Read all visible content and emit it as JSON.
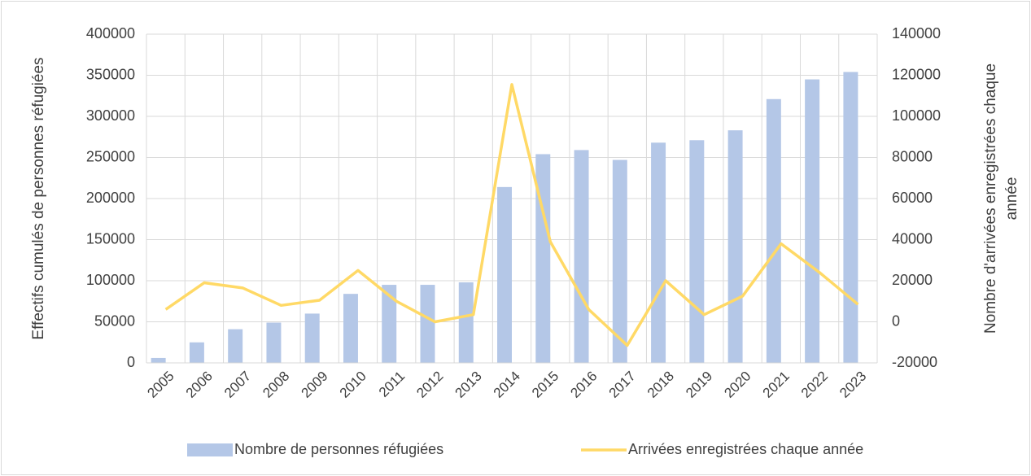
{
  "chart_data": {
    "type": "bar_line",
    "categories": [
      "2005",
      "2006",
      "2007",
      "2008",
      "2009",
      "2010",
      "2011",
      "2012",
      "2013",
      "2014",
      "2015",
      "2016",
      "2017",
      "2018",
      "2019",
      "2020",
      "2021",
      "2022",
      "2023"
    ],
    "series": [
      {
        "name": "Nombre de personnes réfugiées",
        "color": "#b4c7e7",
        "type": "bar",
        "axis": "y",
        "values": [
          6000,
          25000,
          41000,
          49000,
          60000,
          84000,
          95000,
          95000,
          98000,
          214000,
          254000,
          259000,
          247000,
          268000,
          271000,
          283000,
          321000,
          345000,
          354000
        ]
      },
      {
        "name": "Arrivées enregistrées chaque année",
        "color": "#ffd966",
        "type": "line",
        "axis": "y2",
        "values": [
          6000,
          19000,
          16500,
          8000,
          10500,
          25000,
          10000,
          0,
          3500,
          115500,
          39000,
          6000,
          -11500,
          20000,
          3500,
          12500,
          38000,
          24000,
          8500
        ]
      }
    ],
    "ylabel": "Effectifs cumulés de personnes réfugiées",
    "y2label_lines": [
      "Nombre d'arrivées enregistrées chaque",
      "année"
    ],
    "ylim": [
      0,
      400000
    ],
    "yticks": [
      0,
      50000,
      100000,
      150000,
      200000,
      250000,
      300000,
      350000,
      400000
    ],
    "y2lim": [
      -20000,
      140000
    ],
    "y2ticks": [
      -20000,
      0,
      20000,
      40000,
      60000,
      80000,
      100000,
      120000,
      140000
    ],
    "grid": true,
    "legend": "bottom"
  }
}
